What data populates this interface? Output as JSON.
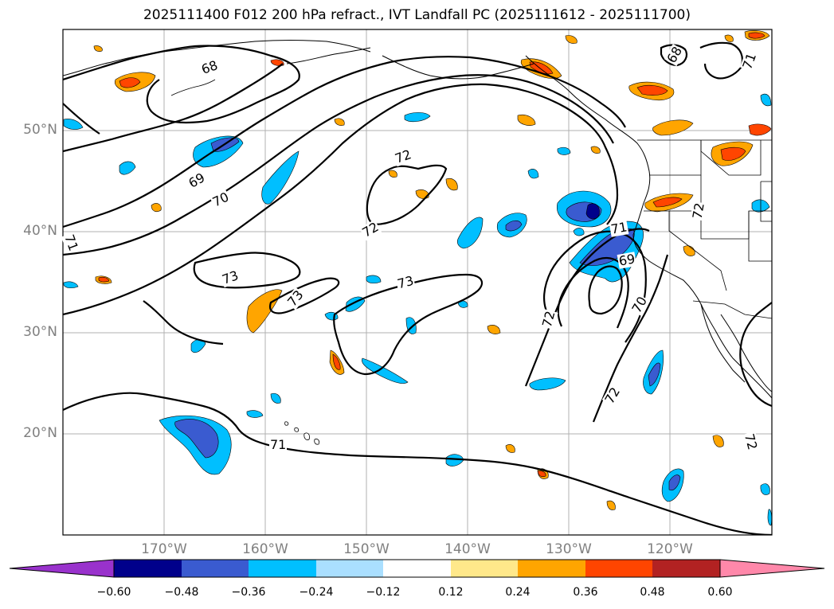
{
  "title": "2025111400 F012 200 hPa refract., IVT Landfall PC (2025111612 - 2025111700)",
  "lat_labels": [
    "50°N",
    "40°N",
    "30°N",
    "20°N"
  ],
  "lon_labels": [
    "170°W",
    "160°W",
    "150°W",
    "140°W",
    "130°W",
    "120°W"
  ],
  "contour_labels": [
    "68",
    "68",
    "69",
    "70",
    "71",
    "71",
    "72",
    "72",
    "72",
    "72",
    "73",
    "73",
    "73",
    "71",
    "69",
    "70",
    "72",
    "71",
    "72"
  ],
  "colorbar": {
    "ticks": [
      "−0.60",
      "−0.48",
      "−0.36",
      "−0.24",
      "−0.12",
      "0.12",
      "0.24",
      "0.36",
      "0.48",
      "0.60"
    ],
    "colors": [
      "#9932cc",
      "#00008b",
      "#3a5bd0",
      "#00bfff",
      "#aadfff",
      "#ffffff",
      "#ffe88a",
      "#ffa500",
      "#ff4500",
      "#b22222",
      "#ff88aa"
    ]
  },
  "chart_data": {
    "type": "heatmap",
    "title": "2025111400 F012 200 hPa refract., IVT Landfall PC (2025111612 - 2025111700)",
    "lon_range": [
      -180,
      -110
    ],
    "lat_range": [
      10,
      60
    ],
    "grid": true,
    "contour_levels": [
      68,
      69,
      70,
      71,
      72,
      73
    ],
    "colorbar_levels": [
      -0.6,
      -0.48,
      -0.36,
      -0.24,
      -0.12,
      0.12,
      0.24,
      0.36,
      0.48,
      0.6
    ],
    "colorbar_colors": [
      "#9932cc",
      "#00008b",
      "#3a5bd0",
      "#00bfff",
      "#aadfff",
      "#ffffff",
      "#ffe88a",
      "#ffa500",
      "#ff4500",
      "#b22222",
      "#ff88aa"
    ]
  }
}
